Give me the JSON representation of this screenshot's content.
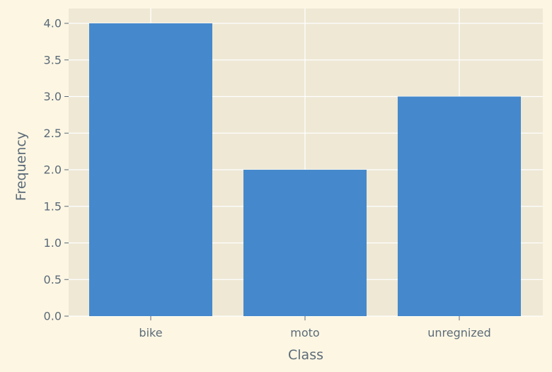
{
  "chart_data": {
    "type": "bar",
    "categories": [
      "bike",
      "moto",
      "unregnized"
    ],
    "values": [
      4,
      2,
      3
    ],
    "title": "",
    "xlabel": "Class",
    "ylabel": "Frequency",
    "ylim": [
      0,
      4.2
    ],
    "yticks": [
      "0.0",
      "0.5",
      "1.0",
      "1.5",
      "2.0",
      "2.5",
      "3.0",
      "3.5",
      "4.0"
    ],
    "grid": true,
    "legend": "none",
    "colors": {
      "bar": "#4589cc",
      "plot_background": "#eee8d5",
      "figure_background": "#fdf6e3",
      "grid": "#ffffff",
      "text": "#5b6b78"
    }
  }
}
